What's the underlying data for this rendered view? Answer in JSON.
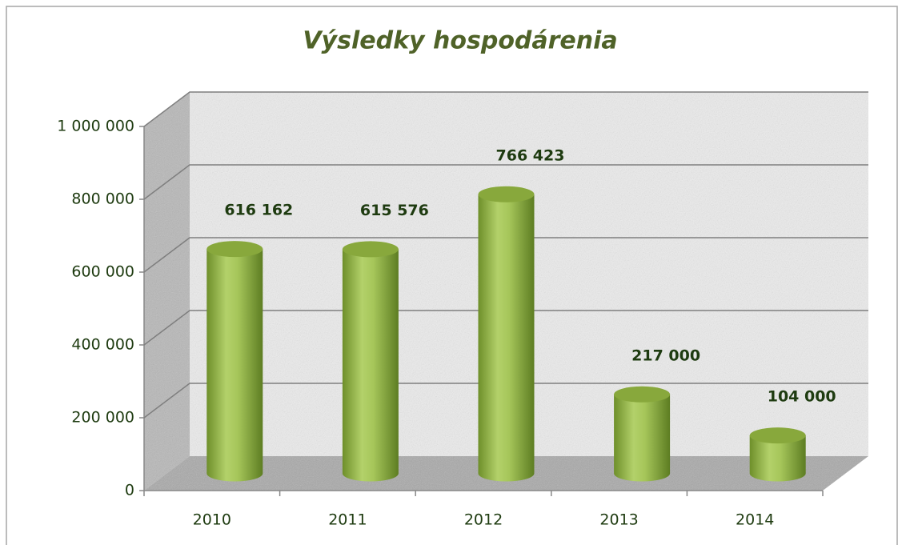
{
  "chart_data": {
    "type": "bar",
    "title": "Výsledky hospodárenia",
    "categories": [
      "2010",
      "2011",
      "2012",
      "2013",
      "2014"
    ],
    "values": [
      616162,
      615576,
      766423,
      217000,
      104000
    ],
    "value_labels": [
      "616 162",
      "615 576",
      "766 423",
      "217 000",
      "104 000"
    ],
    "color": "#9bbb59",
    "ylim": [
      0,
      1000000
    ],
    "yticks": [
      0,
      {
        "value": 200000,
        "label": "200 000"
      },
      {
        "value": 400000,
        "label": "400 000"
      },
      {
        "value": 600000,
        "label": "600 000"
      },
      {
        "value": 800000,
        "label": "800 000"
      },
      {
        "value": 1000000,
        "label": "1 000 000"
      }
    ],
    "grid": true
  }
}
